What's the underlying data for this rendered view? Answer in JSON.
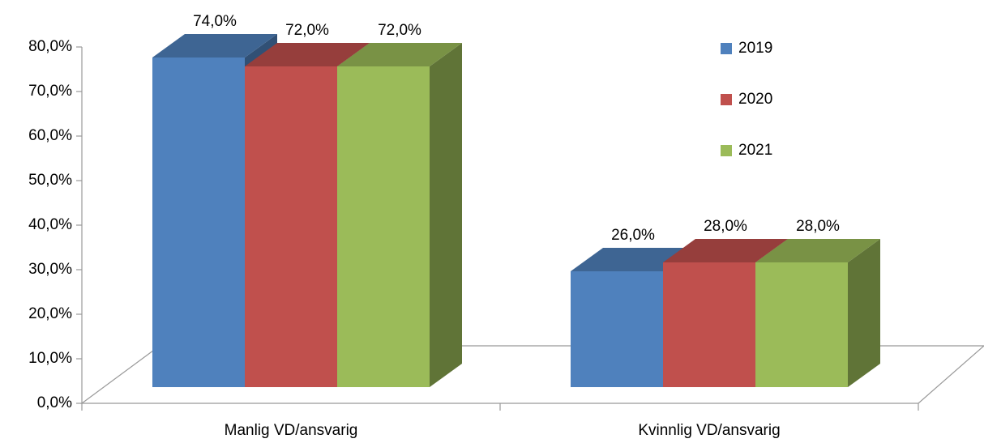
{
  "chart_data": {
    "type": "bar3d",
    "categories": [
      "Manlig VD/ansvarig",
      "Kvinnlig VD/ansvarig"
    ],
    "series": [
      {
        "name": "2019",
        "color": "#4f81bd",
        "values": [
          74,
          26
        ],
        "value_labels": [
          "74,0%",
          "26,0%"
        ]
      },
      {
        "name": "2020",
        "color": "#c0504d",
        "values": [
          72,
          28
        ],
        "value_labels": [
          "72,0%",
          "28,0%"
        ]
      },
      {
        "name": "2021",
        "color": "#9bbb59",
        "values": [
          72,
          28
        ],
        "value_labels": [
          "72,0%",
          "28,0%"
        ]
      }
    ],
    "ylim": [
      0,
      80
    ],
    "yticks": [
      {
        "value": 0,
        "label": "0,0%"
      },
      {
        "value": 10,
        "label": "10,0%"
      },
      {
        "value": 20,
        "label": "20,0%"
      },
      {
        "value": 30,
        "label": "30,0%"
      },
      {
        "value": 40,
        "label": "40,0%"
      },
      {
        "value": 50,
        "label": "50,0%"
      },
      {
        "value": 60,
        "label": "60,0%"
      },
      {
        "value": 70,
        "label": "70,0%"
      },
      {
        "value": 80,
        "label": "80,0%"
      }
    ],
    "legend": "right"
  }
}
